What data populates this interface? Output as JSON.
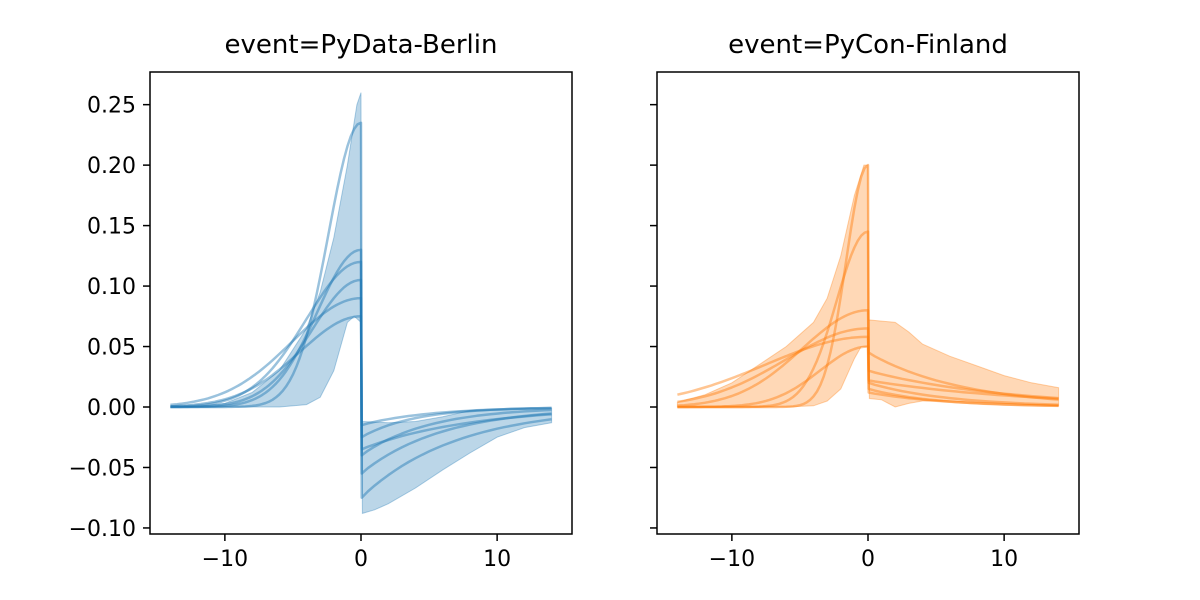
{
  "colors": {
    "blue": "#1f77b4",
    "orange": "#ff7f0e"
  },
  "chart_data": [
    {
      "type": "line",
      "title": "event=PyData-Berlin",
      "color": "#1f77b4",
      "xlim": [
        -15.5,
        15.5
      ],
      "ylim": [
        -0.105,
        0.277
      ],
      "xticks": [
        -10,
        0,
        10
      ],
      "xtick_labels": [
        "−10",
        "0",
        "10"
      ],
      "yticks": [
        -0.1,
        -0.05,
        0.0,
        0.05,
        0.1,
        0.15,
        0.2,
        0.25
      ],
      "ytick_labels": [
        "−0.10",
        "−0.05",
        "0.00",
        "0.05",
        "0.10",
        "0.15",
        "0.20",
        "0.25"
      ],
      "band": {
        "upper": [
          [
            -14,
            0
          ],
          [
            -12,
            0.0005
          ],
          [
            -10,
            0.003
          ],
          [
            -8,
            0.012
          ],
          [
            -6,
            0.03
          ],
          [
            -4,
            0.065
          ],
          [
            -3,
            0.095
          ],
          [
            -2,
            0.14
          ],
          [
            -1,
            0.2
          ],
          [
            -0.3,
            0.25
          ],
          [
            0,
            0.26
          ],
          [
            0.05,
            -0.012
          ],
          [
            2,
            -0.013
          ],
          [
            4,
            -0.012
          ],
          [
            6,
            -0.008
          ],
          [
            8,
            -0.003
          ],
          [
            10,
            -0.002
          ],
          [
            12,
            -0.001
          ],
          [
            14,
            -0.001
          ]
        ],
        "lower": [
          [
            14,
            -0.013
          ],
          [
            12,
            -0.017
          ],
          [
            10,
            -0.025
          ],
          [
            8,
            -0.038
          ],
          [
            6,
            -0.052
          ],
          [
            4,
            -0.067
          ],
          [
            2,
            -0.08
          ],
          [
            1,
            -0.085
          ],
          [
            0.1,
            -0.088
          ],
          [
            0,
            0.07
          ],
          [
            -0.5,
            0.075
          ],
          [
            -1,
            0.07
          ],
          [
            -2,
            0.03
          ],
          [
            -3,
            0.008
          ],
          [
            -4,
            0.002
          ],
          [
            -6,
            0
          ],
          [
            -8,
            0
          ],
          [
            -10,
            0
          ],
          [
            -12,
            0
          ],
          [
            -14,
            0
          ]
        ]
      },
      "series": [
        {
          "peak": 0.235,
          "width": 2.4,
          "post_start": -0.075,
          "decay": 7
        },
        {
          "peak": 0.13,
          "width": 3.2,
          "post_start": -0.04,
          "decay": 5
        },
        {
          "peak": 0.12,
          "width": 4.0,
          "post_start": -0.055,
          "decay": 6
        },
        {
          "peak": 0.105,
          "width": 3.6,
          "post_start": -0.025,
          "decay": 4
        },
        {
          "peak": 0.09,
          "width": 5.0,
          "post_start": -0.035,
          "decay": 8
        },
        {
          "peak": 0.075,
          "width": 4.5,
          "post_start": -0.015,
          "decay": 5
        }
      ]
    },
    {
      "type": "line",
      "title": "event=PyCon-Finland",
      "color": "#ff7f0e",
      "xlim": [
        -15.5,
        15.5
      ],
      "ylim": [
        -0.105,
        0.277
      ],
      "xticks": [
        -10,
        0,
        10
      ],
      "xtick_labels": [
        "−10",
        "0",
        "10"
      ],
      "yticks": [
        -0.1,
        -0.05,
        0.0,
        0.05,
        0.1,
        0.15,
        0.2,
        0.25
      ],
      "ytick_labels": [],
      "band": {
        "upper": [
          [
            -14,
            0.004
          ],
          [
            -12,
            0.01
          ],
          [
            -10,
            0.02
          ],
          [
            -8,
            0.035
          ],
          [
            -6,
            0.05
          ],
          [
            -4,
            0.07
          ],
          [
            -3,
            0.09
          ],
          [
            -2,
            0.125
          ],
          [
            -1,
            0.175
          ],
          [
            -0.3,
            0.2
          ],
          [
            0,
            0.2
          ],
          [
            0.05,
            0.072
          ],
          [
            1,
            0.071
          ],
          [
            2,
            0.07
          ],
          [
            3,
            0.062
          ],
          [
            4,
            0.052
          ],
          [
            6,
            0.042
          ],
          [
            8,
            0.034
          ],
          [
            10,
            0.026
          ],
          [
            12,
            0.02
          ],
          [
            14,
            0.016
          ]
        ],
        "lower": [
          [
            14,
            0.001
          ],
          [
            12,
            0.002
          ],
          [
            10,
            0.003
          ],
          [
            8,
            0.004
          ],
          [
            6,
            0.005
          ],
          [
            4,
            0.005
          ],
          [
            3,
            0.003
          ],
          [
            2,
            0.0
          ],
          [
            1,
            0.006
          ],
          [
            0.1,
            0.007
          ],
          [
            0,
            0.05
          ],
          [
            -0.5,
            0.05
          ],
          [
            -1,
            0.04
          ],
          [
            -2,
            0.015
          ],
          [
            -3,
            0.005
          ],
          [
            -4,
            0.001
          ],
          [
            -6,
            0
          ],
          [
            -8,
            0
          ],
          [
            -10,
            0
          ],
          [
            -12,
            0
          ],
          [
            -14,
            0
          ]
        ]
      },
      "series": [
        {
          "peak": 0.2,
          "width": 1.6,
          "post_start": 0.012,
          "decay": 6
        },
        {
          "peak": 0.145,
          "width": 2.3,
          "post_start": 0.02,
          "decay": 6
        },
        {
          "peak": 0.08,
          "width": 4.8,
          "post_start": 0.045,
          "decay": 7
        },
        {
          "peak": 0.065,
          "width": 6.0,
          "post_start": 0.03,
          "decay": 10
        },
        {
          "peak": 0.058,
          "width": 7.5,
          "post_start": 0.022,
          "decay": 12
        },
        {
          "peak": 0.05,
          "width": 3.5,
          "post_start": 0.015,
          "decay": 5
        }
      ]
    }
  ]
}
